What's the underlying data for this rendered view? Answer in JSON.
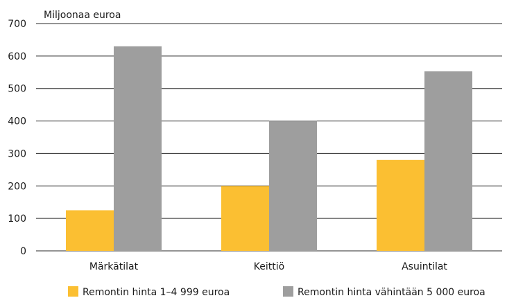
{
  "chart_data": {
    "type": "bar",
    "title": "",
    "ylabel": "Miljoonaa euroa",
    "xlabel": "",
    "categories": [
      "Märkätilat",
      "Keittiö",
      "Asuintilat"
    ],
    "series": [
      {
        "name": "Remontin hinta 1–4 999 euroa",
        "values": [
          125,
          200,
          280
        ],
        "color": "#fbbf32"
      },
      {
        "name": "Remontin hinta vähintään 5 000 euroa",
        "values": [
          630,
          400,
          553
        ],
        "color": "#9e9e9e"
      }
    ],
    "ylim": [
      0,
      700
    ],
    "yticks": [
      0,
      100,
      200,
      300,
      400,
      500,
      600,
      700
    ],
    "grid": true,
    "legend": "bottom"
  }
}
